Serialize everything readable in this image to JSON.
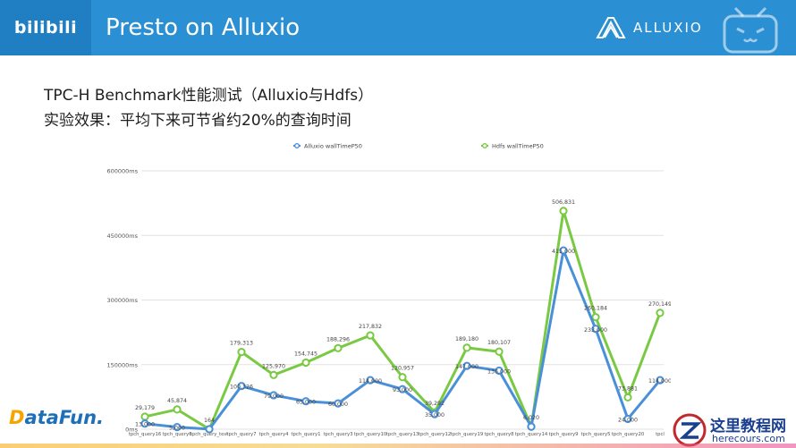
{
  "header": {
    "brand": "bilibili",
    "title": "Presto on Alluxio",
    "partner_logo": "ALLUXIO"
  },
  "content": {
    "heading": "TPC-H Benchmark性能测试（Alluxio与Hdfs）",
    "subheading": "实验效果：平均下来可节省约20%的查询时间"
  },
  "footer": {
    "datafun_logo_a": "D",
    "datafun_logo_b": "ataFun.",
    "watermark_line1": "这里教程网",
    "watermark_line2": "herecours.com"
  },
  "colors": {
    "header_blue": "#2a8fd3",
    "alluxio_series": "#4a90d9",
    "hdfs_series": "#7ac943"
  },
  "chart_data": {
    "type": "line",
    "legend_position": "top",
    "grid": true,
    "ylim": [
      0,
      600000
    ],
    "y_ticks": [
      "0ms",
      "150000ms",
      "300000ms",
      "450000ms",
      "600000ms"
    ],
    "categories": [
      "tpch_query16",
      "tpch_query6",
      "tpch_query_test",
      "tpch_query7",
      "tpch_query4",
      "tpch_query1",
      "tpch_query3",
      "tpch_query10",
      "tpch_query13",
      "tpch_query12",
      "tpch_query19",
      "tpch_query8",
      "tpch_query14",
      "tpch_query9",
      "tpch_query5",
      "tpch_query20",
      "tpcl"
    ],
    "series": [
      {
        "name": "Alluxio wallTimeP50",
        "color": "#4a90d9",
        "values": [
          13000,
          5000,
          164,
          100326,
          79000,
          65000,
          60000,
          114000,
          93000,
          35000,
          147000,
          136000,
          6000,
          415000,
          233000,
          24000,
          114000
        ],
        "labels": [
          "13,000",
          "5,000",
          "",
          "100,326",
          "79,000",
          "65,000",
          "60,000",
          "114,000",
          "93,000",
          "35,000",
          "147,000",
          "136,000",
          "",
          "415,000",
          "233,000",
          "24,000",
          "114,000"
        ]
      },
      {
        "name": "Hdfs wallTimeP50",
        "color": "#7ac943",
        "values": [
          29179,
          45874,
          164,
          179313,
          125970,
          154745,
          188296,
          217832,
          120957,
          39292,
          189180,
          180107,
          6020,
          506831,
          260184,
          73881,
          270149
        ],
        "labels": [
          "29,179",
          "45,874",
          "164",
          "179,313",
          "125,970",
          "154,745",
          "188,296",
          "217,832",
          "120,957",
          "39,292",
          "189,180",
          "180,107",
          "6,020",
          "506,831",
          "260,184",
          "73,881",
          "270,149"
        ]
      }
    ]
  }
}
